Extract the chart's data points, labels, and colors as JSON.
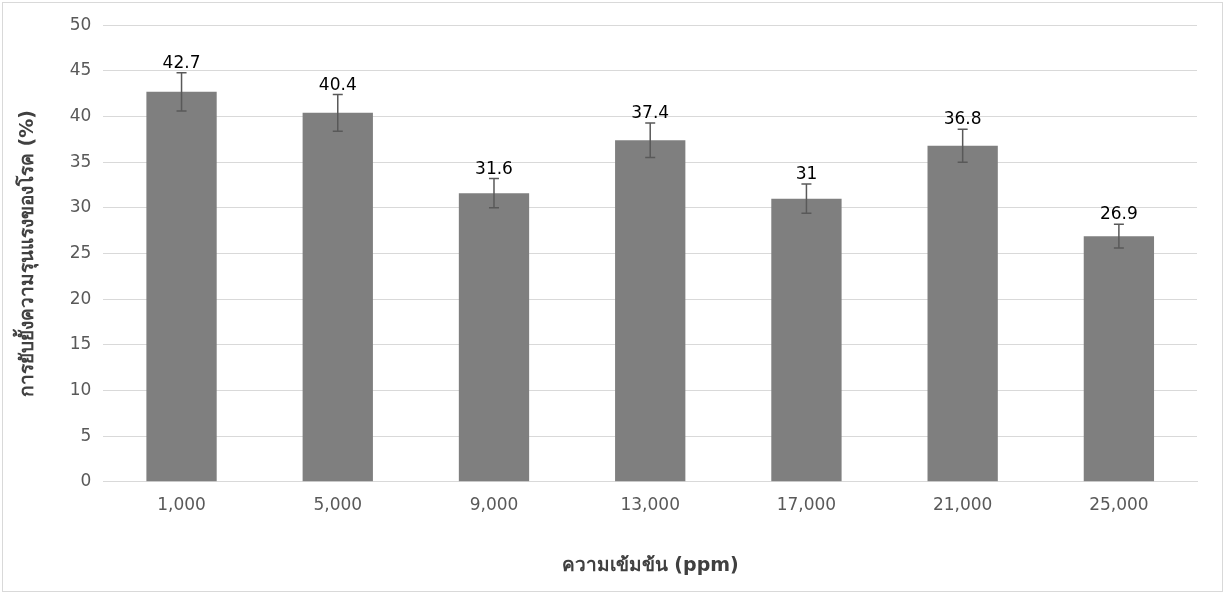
{
  "chart_data": {
    "type": "bar",
    "xlabel": "ความเข้มข้น (ppm)",
    "ylabel": "การยับยั้งความรุนแรงของโรค (%)",
    "categories": [
      "1,000",
      "5,000",
      "9,000",
      "13,000",
      "17,000",
      "21,000",
      "25,000"
    ],
    "values": [
      42.7,
      40.4,
      31.6,
      37.4,
      31,
      36.8,
      26.9
    ],
    "errors": [
      2.1,
      2.0,
      1.6,
      1.9,
      1.6,
      1.8,
      1.3
    ],
    "color": "#7f7f7f",
    "ylim": [
      0,
      50
    ],
    "yticks": [
      0,
      5,
      10,
      15,
      20,
      25,
      30,
      35,
      40,
      45,
      50
    ],
    "grid": "y",
    "data_labels": true,
    "legend": false
  }
}
